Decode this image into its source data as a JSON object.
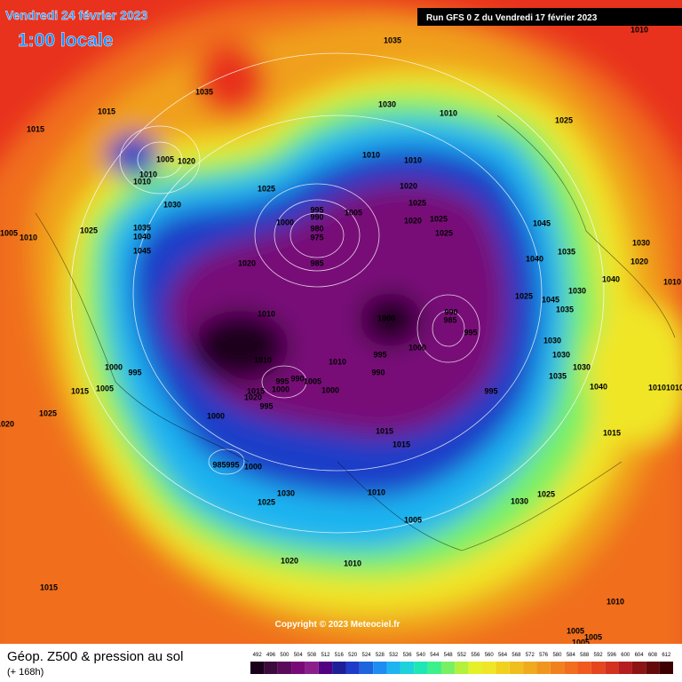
{
  "header": {
    "date": "Vendredi 24 février 2023",
    "time": "1:00 locale",
    "run": "Run GFS 0 Z du Vendredi 17 février 2023"
  },
  "footer": {
    "title": "Géop. Z500 & pression au sol",
    "lead": "(+ 168h)",
    "copyright": "Copyright © 2023 Meteociel.fr"
  },
  "legend": {
    "ticks": [
      492,
      496,
      500,
      504,
      508,
      512,
      516,
      520,
      524,
      528,
      532,
      536,
      540,
      544,
      548,
      552,
      556,
      560,
      564,
      568,
      572,
      576,
      580,
      584,
      588,
      592,
      596,
      600,
      604,
      608,
      612
    ],
    "colors": [
      "#1a001a",
      "#3c0a3c",
      "#5a0a5a",
      "#780a78",
      "#8c1e8c",
      "#500080",
      "#1e1e96",
      "#1e3cc8",
      "#1e64dc",
      "#1e8cf0",
      "#1eb4f0",
      "#1ed2dc",
      "#1ee6b4",
      "#3cf08c",
      "#78f064",
      "#b4f03c",
      "#e6f028",
      "#f0e628",
      "#f0d21e",
      "#f0be1e",
      "#f0aa1e",
      "#f0961e",
      "#f0821e",
      "#f06e1e",
      "#f05a1e",
      "#e6461e",
      "#d2321e",
      "#b41e1e",
      "#8c1414",
      "#640a0a",
      "#3c0000"
    ]
  },
  "pressure_labels": [
    1010,
    1035,
    1035,
    1015,
    1015,
    1030,
    1010,
    1025,
    1005,
    1020,
    1010,
    1010,
    1010,
    1010,
    1030,
    1025,
    995,
    990,
    1005,
    1020,
    1025,
    1020,
    1025,
    1025,
    980,
    975,
    985,
    1000,
    1045,
    1035,
    1030,
    1005,
    1010,
    1025,
    1035,
    1040,
    1045,
    1020,
    1040,
    1020,
    1040,
    1010,
    1025,
    1030,
    1045,
    1035,
    990,
    985,
    995,
    1010,
    1000,
    1030,
    1010,
    1010,
    1000,
    995,
    990,
    1030,
    1030,
    1035,
    1000,
    995,
    995,
    990,
    1005,
    1000,
    1000,
    1015,
    1005,
    995,
    1015,
    1020,
    995,
    1040,
    1010,
    1010,
    1025,
    1000,
    1020,
    1015,
    1015,
    1015,
    985,
    995,
    1000,
    1010,
    1030,
    1025,
    1025,
    1030,
    1005,
    1020,
    1010,
    1015,
    1010,
    1005,
    1005,
    1005
  ]
}
